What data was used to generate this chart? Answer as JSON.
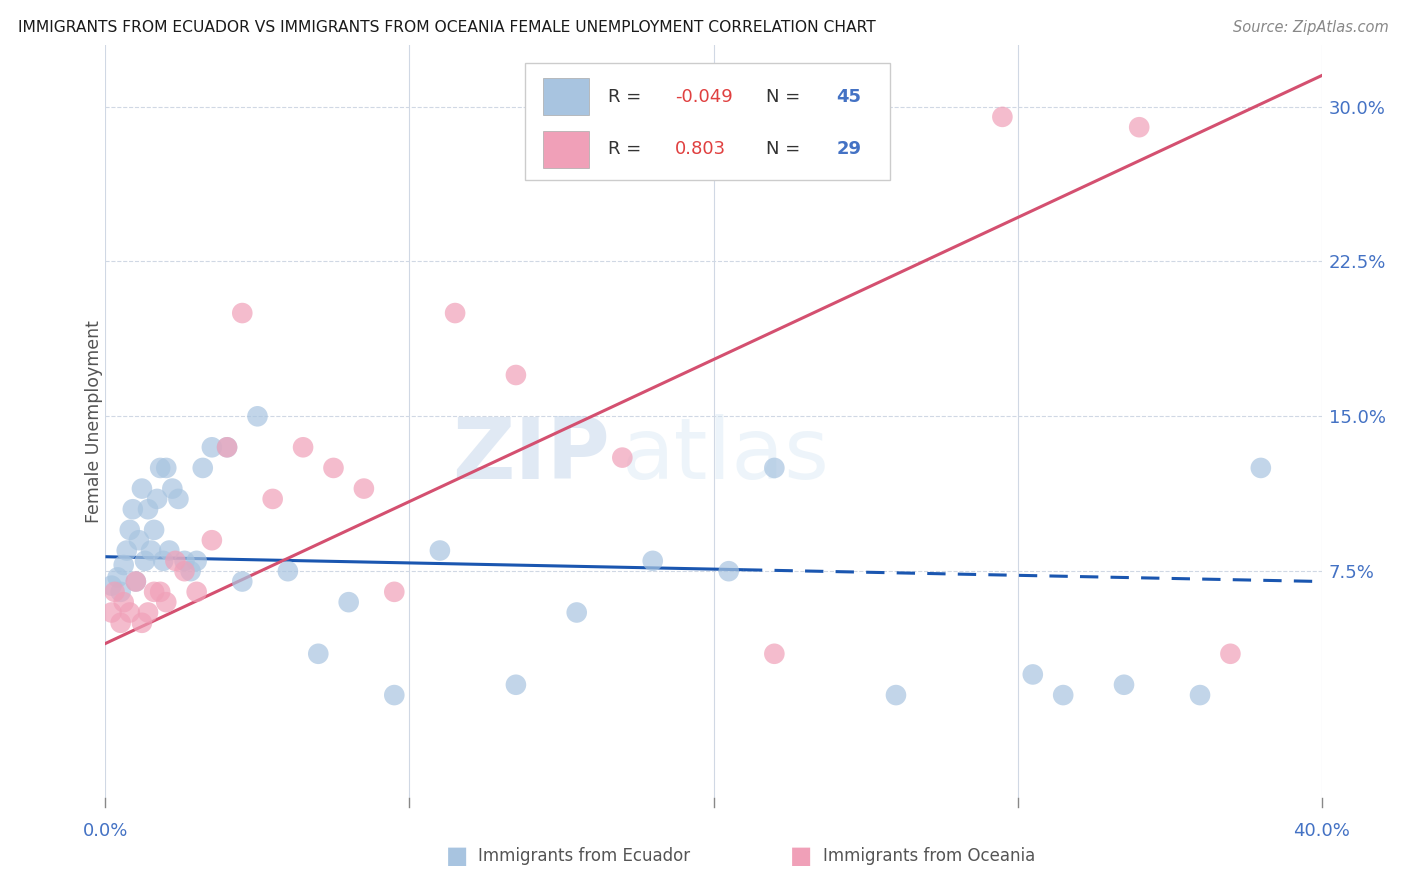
{
  "title": "IMMIGRANTS FROM ECUADOR VS IMMIGRANTS FROM OCEANIA FEMALE UNEMPLOYMENT CORRELATION CHART",
  "source": "Source: ZipAtlas.com",
  "ylabel": "Female Unemployment",
  "color_ecuador": "#a8c4e0",
  "color_oceania": "#f0a0b8",
  "line_color_ecuador": "#1a56b0",
  "line_color_oceania": "#d45070",
  "R1": "-0.049",
  "N1": "45",
  "R2": "0.803",
  "N2": "29",
  "legend_label1": "Immigrants from Ecuador",
  "legend_label2": "Immigrants from Oceania",
  "xlim": [
    0.0,
    40.0
  ],
  "ylim": [
    -3.5,
    33.0
  ],
  "ytick_vals": [
    7.5,
    15.0,
    22.5,
    30.0
  ],
  "xtick_vals": [
    0,
    10,
    20,
    30,
    40
  ],
  "watermark_zip": "ZIP",
  "watermark_atlas": "atlas",
  "ecuador_x": [
    0.2,
    0.4,
    0.5,
    0.6,
    0.7,
    0.8,
    0.9,
    1.0,
    1.1,
    1.2,
    1.3,
    1.4,
    1.5,
    1.6,
    1.7,
    1.8,
    1.9,
    2.0,
    2.1,
    2.2,
    2.4,
    2.6,
    2.8,
    3.0,
    3.2,
    3.5,
    4.0,
    4.5,
    5.0,
    6.0,
    7.0,
    8.0,
    9.5,
    11.0,
    13.5,
    15.5,
    18.0,
    20.5,
    22.0,
    26.0,
    30.5,
    31.5,
    33.5,
    36.0,
    38.0
  ],
  "ecuador_y": [
    6.8,
    7.2,
    6.5,
    7.8,
    8.5,
    9.5,
    10.5,
    7.0,
    9.0,
    11.5,
    8.0,
    10.5,
    8.5,
    9.5,
    11.0,
    12.5,
    8.0,
    12.5,
    8.5,
    11.5,
    11.0,
    8.0,
    7.5,
    8.0,
    12.5,
    13.5,
    13.5,
    7.0,
    15.0,
    7.5,
    3.5,
    6.0,
    1.5,
    8.5,
    2.0,
    5.5,
    8.0,
    7.5,
    12.5,
    1.5,
    2.5,
    1.5,
    2.0,
    1.5,
    12.5
  ],
  "oceania_x": [
    0.2,
    0.3,
    0.5,
    0.6,
    0.8,
    1.0,
    1.2,
    1.4,
    1.6,
    1.8,
    2.0,
    2.3,
    2.6,
    3.0,
    3.5,
    4.0,
    4.5,
    5.5,
    6.5,
    7.5,
    8.5,
    9.5,
    11.5,
    13.5,
    17.0,
    22.0,
    29.5,
    34.0,
    37.0
  ],
  "oceania_y": [
    5.5,
    6.5,
    5.0,
    6.0,
    5.5,
    7.0,
    5.0,
    5.5,
    6.5,
    6.5,
    6.0,
    8.0,
    7.5,
    6.5,
    9.0,
    13.5,
    20.0,
    11.0,
    13.5,
    12.5,
    11.5,
    6.5,
    20.0,
    17.0,
    13.0,
    3.5,
    29.5,
    29.0,
    3.5
  ],
  "line_ecuador_x0": 0.0,
  "line_ecuador_y0": 8.2,
  "line_ecuador_x1": 40.0,
  "line_ecuador_y1": 7.0,
  "line_oceania_x0": 0.0,
  "line_oceania_y0": 4.0,
  "line_oceania_x1": 40.0,
  "line_oceania_y1": 31.5,
  "dash_start_x": 21.0
}
